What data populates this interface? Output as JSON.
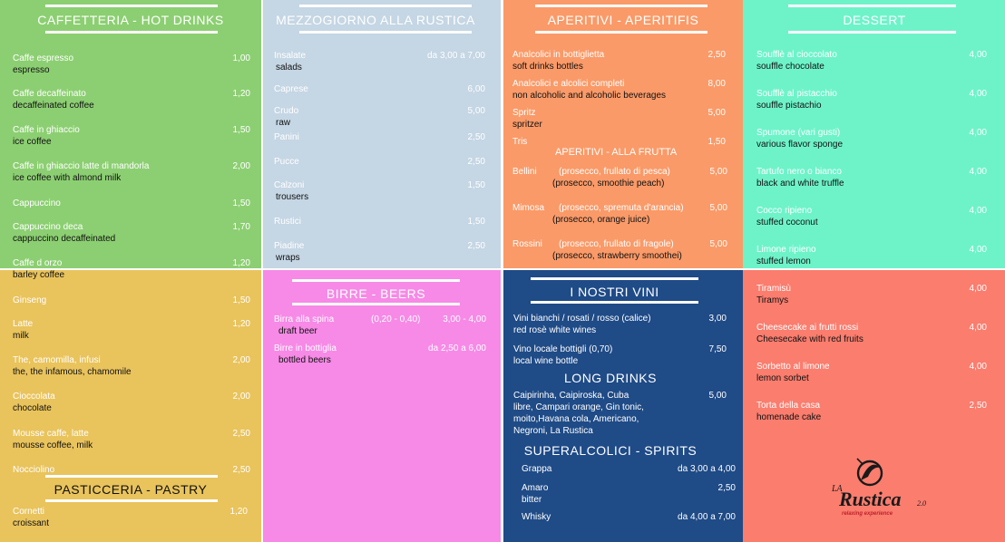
{
  "colors": {
    "hot": "#8ccf72",
    "rustica": "#c5d6e4",
    "aperitivi": "#fa9a68",
    "dessert": "#6ef3c9",
    "cafe_bottom": "#e9c35c",
    "birre": "#f68ae6",
    "vini": "#1f4b87",
    "dolci": "#fa7d6e"
  },
  "hot": {
    "title": "CAFFETTERIA - HOT DRINKS",
    "items": [
      {
        "name": "Caffe espresso",
        "tr": "espresso",
        "price": "1,00"
      },
      {
        "name": "Caffe decaffeinato",
        "tr": "decaffeinated coffee",
        "price": "1,20"
      },
      {
        "name": "Caffe in ghiaccio",
        "tr": "ice coffee",
        "price": "1,50"
      },
      {
        "name": "Caffe in ghiaccio latte di mandorla",
        "tr": "ice coffee with almond milk",
        "price": "2,00"
      },
      {
        "name": "Cappuccino",
        "tr": "",
        "price": "1,50"
      },
      {
        "name": "Cappuccino deca",
        "tr": "cappuccino decaffeinated",
        "price": "1,70"
      },
      {
        "name": "Caffe d orzo",
        "tr": "barley coffee",
        "price": "1,20"
      }
    ]
  },
  "cafe2": {
    "items": [
      {
        "name": "Ginseng",
        "tr": "",
        "price": "1,50"
      },
      {
        "name": "Latte",
        "tr": "milk",
        "price": "1,20"
      },
      {
        "name": "The, camomilla, infusi",
        "tr": "the, the infamous, chamomile",
        "price": "2,00"
      },
      {
        "name": "Cioccolata",
        "tr": "chocolate",
        "price": "2,00"
      },
      {
        "name": "Mousse caffe, latte",
        "tr": "mousse coffee, milk",
        "price": "2,50"
      },
      {
        "name": "Nocciolino",
        "tr": "",
        "price": "2,50"
      }
    ],
    "pastry_title": "PASTICCERIA - PASTRY",
    "pastry": [
      {
        "name": "Cornetti",
        "tr": "croissant",
        "price": "1,20"
      }
    ]
  },
  "rustica": {
    "title": "MEZZOGIORNO ALLA RUSTICA",
    "items": [
      {
        "name": "Insalate",
        "tr": "salads",
        "price": "da 3,00 a 7,00"
      },
      {
        "name": "Caprese",
        "tr": "",
        "price": "6,00"
      },
      {
        "name": "Crudo",
        "tr": "raw",
        "price": "5,00"
      },
      {
        "name": "Panini",
        "tr": "",
        "price": "2,50"
      },
      {
        "name": "Pucce",
        "tr": "",
        "price": "2,50"
      },
      {
        "name": "Calzoni",
        "tr": "trousers",
        "price": "1,50"
      },
      {
        "name": "Rustici",
        "tr": "",
        "price": "1,50"
      },
      {
        "name": "Piadine",
        "tr": "wraps",
        "price": "2,50"
      }
    ]
  },
  "birre": {
    "title": "BIRRE - BEERS",
    "items": [
      {
        "name": "Birra alla spina",
        "tr": "draft beer",
        "mid": "(0,20 - 0,40)",
        "price": "3,00 - 4,00"
      },
      {
        "name": "Birre in bottiglia",
        "tr": "bottled beers",
        "mid": "",
        "price": "da 2,50 a 6,00"
      }
    ]
  },
  "aperitivi": {
    "title": "APERITIVI - APERITIFIS",
    "items": [
      {
        "name": "Analcolici in bottiglietta",
        "tr": "soft drinks bottles",
        "price": "2,50"
      },
      {
        "name": "Analcolici e alcolici completi",
        "tr": "non alcoholic and alcoholic beverages",
        "price": "8,00"
      },
      {
        "name": "Spritz",
        "tr": "spritzer",
        "price": "5,00"
      },
      {
        "name": "Tris",
        "tr": "",
        "price": "1,50"
      }
    ],
    "frutta_title": "APERITIVI - ALLA FRUTTA",
    "frutta": [
      {
        "name": "Bellini",
        "desc": "(prosecco, frullato di pesca)",
        "tr": "(prosecco, smoothie peach)",
        "price": "5,00"
      },
      {
        "name": "Mimosa",
        "desc": "(prosecco, spremuta d'arancia)",
        "tr": "(prosecco, orange juice)",
        "price": "5,00"
      },
      {
        "name": "Rossini",
        "desc": "(prosecco, frullato di fragole)",
        "tr": "(prosecco, strawberry smoothei)",
        "price": "5,00"
      }
    ]
  },
  "vini": {
    "title": "I NOSTRI VINI",
    "items": [
      {
        "name": "Vini bianchi / rosati / rosso   (calice)",
        "tr": "red rosè white wines",
        "price": "3,00"
      },
      {
        "name": "Vino locale bottigli (0,70)",
        "tr": "local wine bottle",
        "price": "7,50"
      }
    ],
    "long_title": "LONG DRINKS",
    "long_lines": [
      "Caipirinha, Caipiroska, Cuba",
      "libre, Campari orange, Gin tonic,",
      "moito,Havana cola, Americano,",
      "Negroni, La Rustica"
    ],
    "long_price": "5,00",
    "spirits_title": "SUPERALCOLICI - SPIRITS",
    "spirits": [
      {
        "name": "Grappa",
        "tr": "",
        "price": "da 3,00 a 4,00"
      },
      {
        "name": "Amaro",
        "tr": "bitter",
        "price": "2,50"
      },
      {
        "name": "Whisky",
        "tr": "",
        "price": "da 4,00 a 7,00"
      }
    ]
  },
  "dessert": {
    "title": "DESSERT",
    "items": [
      {
        "name": "Soufflè al cioccolato",
        "tr": "souffle chocolate",
        "price": "4,00"
      },
      {
        "name": "Soufflè al pistacchio",
        "tr": "souffle pistachio",
        "price": "4,00"
      },
      {
        "name": "Spumone  (vari gusti)",
        "tr": "various flavor sponge",
        "price": "4,00"
      },
      {
        "name": "Tartufo  nero o bianco",
        "tr": "black and white truffle",
        "price": "4,00"
      },
      {
        "name": "Cocco ripieno",
        "tr": "stuffed coconut",
        "price": "4,00"
      },
      {
        "name": "Limone ripieno",
        "tr": "stuffed lemon",
        "price": "4,00"
      }
    ]
  },
  "dolci": {
    "items": [
      {
        "name": "Tiramisù",
        "tr": "Tiramys",
        "price": "4,00"
      },
      {
        "name": "Cheesecake ai frutti rossi",
        "tr": "Cheesecake with red fruits",
        "price": "4,00"
      },
      {
        "name": "Sorbetto al limone",
        "tr": "lemon sorbet",
        "price": "4,00"
      },
      {
        "name": "Torta della casa",
        "tr": "homenade cake",
        "price": "2,50"
      }
    ],
    "logo": {
      "la": "LA",
      "name": "Rustica",
      "version": "2.0",
      "tagline": "relaxing experience"
    }
  }
}
